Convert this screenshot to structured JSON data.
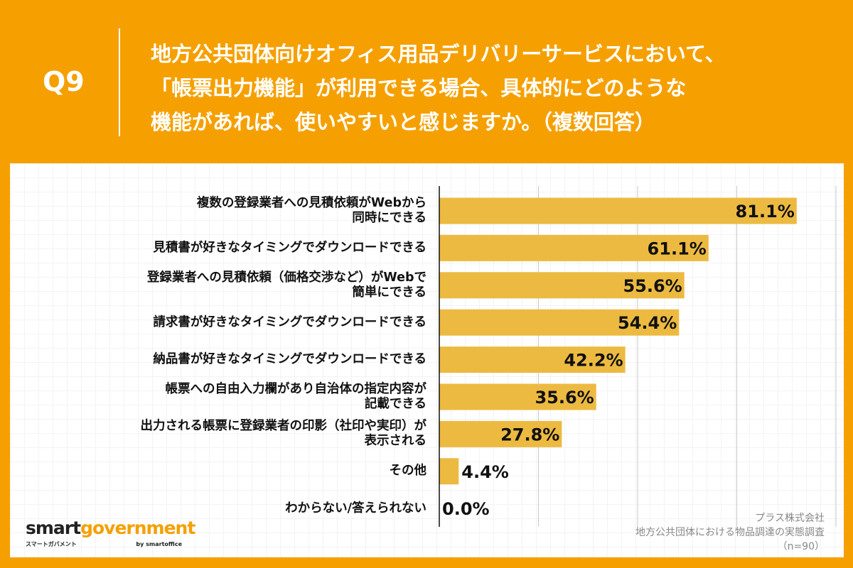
{
  "header": {
    "question_no": "Q9",
    "title": "地方公共団体向けオフィス用品デリバリーサービスにおいて、\n「帳票出力機能」が利用できる場合、具体的にどのような\n機能があれば、使いやすいと感じますか。（複数回答）"
  },
  "chart_data": {
    "type": "bar",
    "orientation": "horizontal",
    "categories": [
      "複数の登録業者への見積依頼がWebから\n同時にできる",
      "見積書が好きなタイミングでダウンロードできる",
      "登録業者への見積依頼（価格交渉など）がWebで\n簡単にできる",
      "請求書が好きなタイミングでダウンロードできる",
      "納品書が好きなタイミングでダウンロードできる",
      "帳票への自由入力欄があり自治体の指定内容が\n記載できる",
      "出力される帳票に登録業者の印影（社印や実印）が\n表示される",
      "その他",
      "わからない/答えられない"
    ],
    "values": [
      81.1,
      61.1,
      55.6,
      54.4,
      42.2,
      35.6,
      27.8,
      4.4,
      0.0
    ],
    "data_labels": [
      "81.1%",
      "61.1%",
      "55.6%",
      "54.4%",
      "42.2%",
      "35.6%",
      "27.8%",
      "4.4%",
      "0.0%"
    ],
    "xlim": [
      0,
      90
    ],
    "grid": true,
    "bar_color": "#EDBA41"
  },
  "source": {
    "company": "プラス株式会社",
    "survey": "地方公共団体における物品調達の実態調査",
    "n": "（n=90）"
  },
  "logo": {
    "smart": "smart",
    "government": "government",
    "kana": "スマートガバメント",
    "by": "by smartoffice"
  },
  "colors": {
    "background": "#F5A000",
    "bar": "#EDBA41"
  }
}
